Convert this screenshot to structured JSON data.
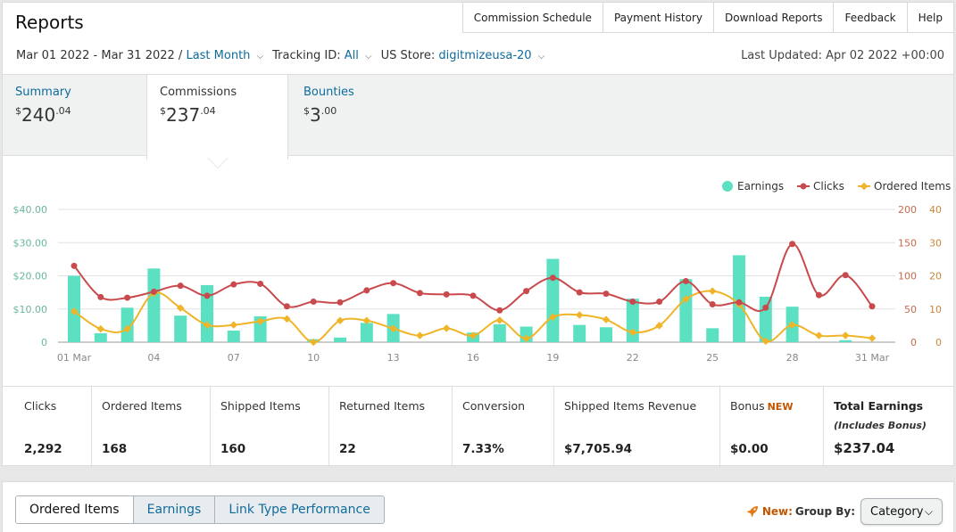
{
  "header": {
    "title": "Reports",
    "nav": [
      "Commission Schedule",
      "Payment History",
      "Download Reports",
      "Feedback",
      "Help"
    ],
    "date_range": "Mar 01 2022 - Mar 31 2022 /",
    "date_preset": "Last Month",
    "tracking_label": "Tracking ID:",
    "tracking_value": "All",
    "store_label": "US Store:",
    "store_value": "digitmizeusa-20",
    "last_updated": "Last Updated: Apr 02 2022 +00:00"
  },
  "tabs": [
    {
      "label": "Summary",
      "currency": "$",
      "whole": "240",
      "cents": ".04"
    },
    {
      "label": "Commissions",
      "currency": "$",
      "whole": "237",
      "cents": ".04"
    },
    {
      "label": "Bounties",
      "currency": "$",
      "whole": "3",
      "cents": ".00"
    }
  ],
  "chart_data": {
    "type": "bar",
    "x_tick_labels": [
      "01 Mar",
      "04",
      "07",
      "10",
      "13",
      "16",
      "19",
      "22",
      "25",
      "28",
      "31 Mar"
    ],
    "left_axis_ticks": [
      "$40.00",
      "$30.00",
      "$20.00",
      "$10.00",
      "0"
    ],
    "right_axis_ticks_clicks": [
      "200",
      "150",
      "100",
      "50",
      "0"
    ],
    "right_axis_ticks_items": [
      "40",
      "30",
      "20",
      "10",
      "0"
    ],
    "legend": [
      "Earnings",
      "Clicks",
      "Ordered Items"
    ],
    "colors": {
      "earnings": "#5ce0c2",
      "clicks": "#c94a4d",
      "ordered_items": "#f0b429"
    },
    "ylim_earnings": [
      0,
      40
    ],
    "ylim_clicks": [
      0,
      200
    ],
    "ylim_items": [
      0,
      40
    ],
    "series": [
      {
        "name": "Earnings",
        "values": [
          20.0,
          2.7,
          10.4,
          22.2,
          8.0,
          17.2,
          3.5,
          7.8,
          0,
          0.9,
          1.4,
          5.8,
          8.5,
          0,
          0,
          2.9,
          5.4,
          4.7,
          25.1,
          5.2,
          4.5,
          13.1,
          0,
          19.0,
          4.2,
          26.2,
          13.7,
          10.7,
          0,
          0.6,
          0
        ]
      },
      {
        "name": "Clicks",
        "values": [
          115,
          68,
          67,
          76,
          85,
          70,
          87,
          88,
          54,
          61,
          60,
          78,
          89,
          74,
          72,
          70,
          48,
          77,
          97,
          75,
          73,
          61,
          61,
          92,
          57,
          60,
          52,
          148,
          71,
          101,
          54
        ]
      },
      {
        "name": "Ordered Items",
        "values": [
          9.3,
          4.0,
          4.0,
          14.8,
          10.3,
          5.2,
          5.2,
          6.3,
          7.0,
          0,
          6.5,
          6.5,
          4.1,
          2.0,
          4.2,
          2.0,
          6.6,
          1.1,
          7.6,
          8.2,
          6.8,
          3.0,
          5.0,
          13.0,
          15.4,
          11.4,
          0.3,
          5.2,
          2.0,
          2.0,
          1.2
        ]
      }
    ]
  },
  "stats": [
    {
      "label": "Clicks",
      "value": "2,292"
    },
    {
      "label": "Ordered Items",
      "value": "168"
    },
    {
      "label": "Shipped Items",
      "value": "160"
    },
    {
      "label": "Returned Items",
      "value": "22"
    },
    {
      "label": "Conversion",
      "value": "7.33%"
    },
    {
      "label": "Shipped Items Revenue",
      "value": "$7,705.94"
    },
    {
      "label": "Bonus",
      "badge": "NEW",
      "value": "$0.00"
    },
    {
      "label": "Total Earnings",
      "sub": "(Includes Bonus)",
      "value": "$237.04"
    }
  ],
  "bottom": {
    "subtabs": [
      "Ordered Items",
      "Earnings",
      "Link Type Performance"
    ],
    "group_new": "New:",
    "group_label": "Group By:",
    "group_value": "Category"
  }
}
